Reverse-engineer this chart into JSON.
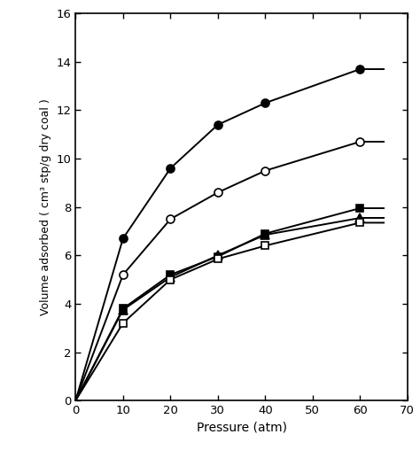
{
  "series": [
    {
      "label": "filled_circle",
      "x": [
        0,
        10,
        20,
        30,
        40,
        60
      ],
      "y": [
        0.0,
        6.7,
        9.6,
        11.4,
        12.3,
        13.7
      ],
      "marker": "o",
      "filled": true,
      "markersize": 6.5
    },
    {
      "label": "open_circle",
      "x": [
        0,
        10,
        20,
        30,
        40,
        60
      ],
      "y": [
        0.0,
        5.2,
        7.5,
        8.6,
        9.5,
        10.7
      ],
      "marker": "o",
      "filled": false,
      "markersize": 6.5
    },
    {
      "label": "filled_square",
      "x": [
        0,
        10,
        20,
        30,
        40,
        60
      ],
      "y": [
        0.0,
        3.8,
        5.2,
        5.95,
        6.9,
        7.95
      ],
      "marker": "s",
      "filled": true,
      "markersize": 5.5
    },
    {
      "label": "filled_triangle",
      "x": [
        0,
        10,
        20,
        30,
        40,
        60
      ],
      "y": [
        0.0,
        3.75,
        5.1,
        6.0,
        6.85,
        7.55
      ],
      "marker": "^",
      "filled": true,
      "markersize": 6.5
    },
    {
      "label": "open_square",
      "x": [
        0,
        10,
        20,
        30,
        40,
        60
      ],
      "y": [
        0.0,
        3.2,
        5.0,
        5.85,
        6.4,
        7.35
      ],
      "marker": "s",
      "filled": false,
      "markersize": 5.5
    }
  ],
  "xlabel": "Pressure (atm)",
  "ylabel": "Volume adsorbed ( cm³ stp/g dry coal )",
  "xlim": [
    0,
    70
  ],
  "ylim": [
    0,
    16
  ],
  "xticks": [
    0,
    10,
    20,
    30,
    40,
    50,
    60,
    70
  ],
  "yticks": [
    0,
    2,
    4,
    6,
    8,
    10,
    12,
    14,
    16
  ],
  "linewidth": 1.4,
  "color": "black"
}
